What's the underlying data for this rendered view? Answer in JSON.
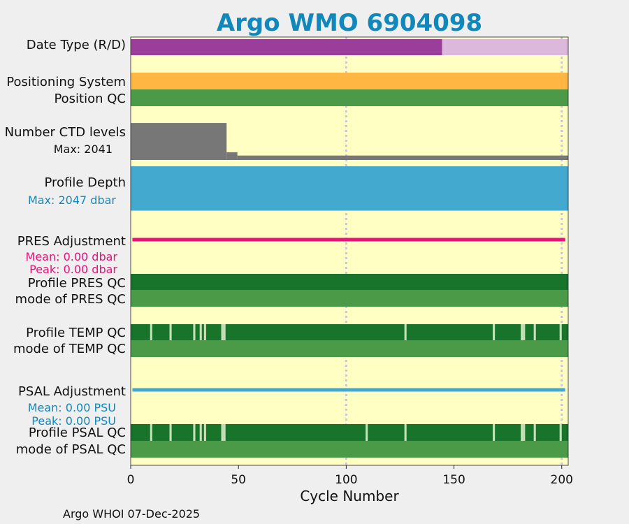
{
  "chart_data": {
    "type": "timeline",
    "title": "Argo WMO 6904098",
    "xlabel": "Cycle Number",
    "xlim": [
      0,
      203
    ],
    "x_ticks": [
      0,
      50,
      100,
      150,
      200
    ],
    "x_tick_labels": [
      "0",
      "50",
      "100",
      "150",
      "200"
    ],
    "footer": "Argo WHOI 07-Dec-2025",
    "colors": {
      "background": "#ffffc4",
      "date_realtime": "#9b3d9b",
      "date_delayed": "#dcb8dc",
      "positioning": "#ffb643",
      "qc_good": "#4a9a48",
      "qc_dark": "#18742a",
      "qc_gap": "#c8e0b8",
      "ctd": "#777777",
      "depth": "#43a9cf",
      "pres_adj": "#e8127a",
      "psal_adj": "#43a9cf",
      "grid": "#c7c7d6"
    },
    "rows": {
      "date_type": {
        "label": "Date Type (R/D)",
        "segments": [
          {
            "from": 0,
            "to": 144.5,
            "value": "R"
          },
          {
            "from": 144.5,
            "to": 203,
            "value": "D"
          }
        ]
      },
      "positioning_system": {
        "label": "Positioning System"
      },
      "position_qc": {
        "label": "Position QC"
      },
      "ctd_levels": {
        "label": "Number CTD levels",
        "max_text": "Max: 2041",
        "max": 2041,
        "steps": [
          {
            "from": 0,
            "to": 44.5,
            "value": 2000
          },
          {
            "from": 44.5,
            "to": 49.5,
            "value": 420
          },
          {
            "from": 49.5,
            "to": 203,
            "value": 240
          }
        ]
      },
      "profile_depth": {
        "label": "Profile Depth",
        "max_text": "Max: 2047 dbar",
        "max": 2047,
        "typical": 2000
      },
      "pres_adjustment": {
        "label": "PRES Adjustment",
        "mean_text": "Mean: 0.00 dbar",
        "peak_text": "Peak: 0.00 dbar",
        "mean": 0.0,
        "peak": 0.0
      },
      "profile_pres_qc": {
        "label": "Profile PRES QC"
      },
      "mode_pres_qc": {
        "label": "mode of PRES QC"
      },
      "profile_temp_qc": {
        "label": "Profile TEMP QC",
        "gap_cycles": [
          9,
          18,
          29,
          32,
          34,
          42,
          43,
          127,
          168,
          181,
          182,
          187,
          199
        ]
      },
      "mode_temp_qc": {
        "label": "mode of TEMP QC"
      },
      "psal_adjustment": {
        "label": "PSAL Adjustment",
        "mean_text": "Mean: 0.00 PSU",
        "peak_text": "Peak: 0.00 PSU",
        "mean": 0.0,
        "peak": 0.0
      },
      "profile_psal_qc": {
        "label": "Profile PSAL QC",
        "gap_cycles": [
          9,
          18,
          29,
          32,
          34,
          42,
          43,
          109,
          127,
          168,
          181,
          182,
          187,
          199
        ]
      },
      "mode_psal_qc": {
        "label": "mode of PSAL QC"
      }
    }
  }
}
